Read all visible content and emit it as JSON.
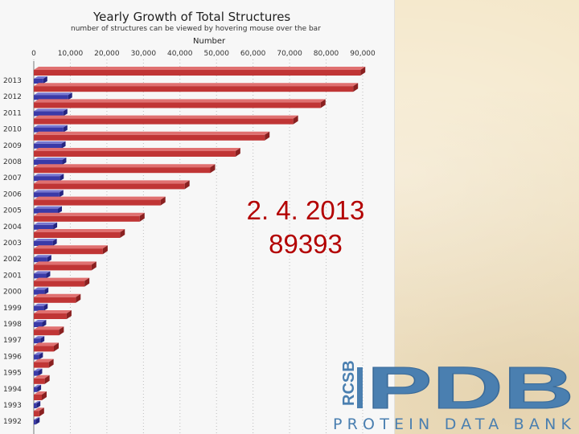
{
  "chart_data": {
    "type": "bar",
    "title": "Yearly Growth of Total Structures",
    "subtitle": "number of structures can be viewed by hovering mouse over the bar",
    "xlabel": "Number",
    "xlim": [
      0,
      90000
    ],
    "x_ticks": [
      "0",
      "10,000",
      "20,000",
      "30,000",
      "40,000",
      "50,000",
      "60,000",
      "70,000",
      "80,000",
      "90,000"
    ],
    "grid": true,
    "orientation": "horizontal",
    "categories": [
      "2013",
      "2012",
      "2011",
      "2010",
      "2009",
      "2008",
      "2007",
      "2006",
      "2005",
      "2004",
      "2003",
      "2002",
      "2001",
      "2000",
      "1999",
      "1998",
      "1997",
      "1996",
      "1995",
      "1994",
      "1993",
      "1992"
    ],
    "series": [
      {
        "color": "#c03535",
        "values": [
          89393,
          87400,
          78500,
          71000,
          63200,
          55200,
          48300,
          41300,
          34700,
          29000,
          23600,
          18900,
          15800,
          13900,
          11500,
          9000,
          6900,
          5500,
          4100,
          3000,
          2200,
          1500
        ]
      },
      {
        "color": "#3a3aa8",
        "values": [
          2600,
          9400,
          8100,
          8100,
          7600,
          7800,
          7100,
          7000,
          6600,
          5300,
          5200,
          3700,
          3400,
          2900,
          2700,
          2300,
          1800,
          1400,
          1200,
          900,
          700,
          500
        ]
      }
    ]
  },
  "overlay": {
    "date": "2. 4. 2013",
    "count": "89393"
  },
  "logo": {
    "small_text": "RCSB",
    "big_text": "PDB",
    "caption": "PROTEIN DATA BANK",
    "color": "#4a7fb0"
  },
  "colors": {
    "background": "#f4e7c9",
    "overlay_text": "#b30000"
  }
}
